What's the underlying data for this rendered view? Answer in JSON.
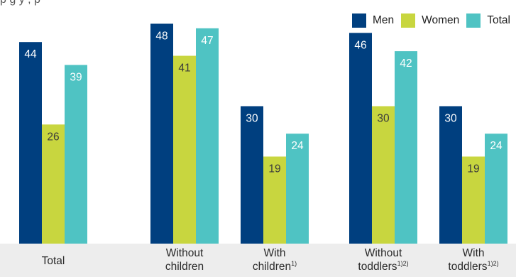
{
  "header": {
    "subtitle": "p                    g          y                     ,     p"
  },
  "chart_data": {
    "type": "bar",
    "title": "",
    "xlabel": "",
    "ylabel": "",
    "ylim": [
      0,
      52
    ],
    "grid": false,
    "legend_position": "top-right",
    "categories": [
      {
        "lines": [
          "Total"
        ],
        "sup": ""
      },
      {
        "lines": [
          "Without",
          "children"
        ],
        "sup": ""
      },
      {
        "lines": [
          "With",
          "children"
        ],
        "sup": "1)"
      },
      {
        "lines": [
          "Without",
          "toddlers"
        ],
        "sup": "1)2)"
      },
      {
        "lines": [
          "With",
          "toddlers"
        ],
        "sup": "1)2)"
      }
    ],
    "series": [
      {
        "name": "Men",
        "color": "#003f7f",
        "values": [
          44,
          48,
          30,
          46,
          30
        ]
      },
      {
        "name": "Women",
        "color": "#c8d63f",
        "values": [
          26,
          41,
          19,
          30,
          19
        ]
      },
      {
        "name": "Total",
        "color": "#4fc3c3",
        "values": [
          39,
          47,
          24,
          42,
          24
        ]
      }
    ]
  }
}
